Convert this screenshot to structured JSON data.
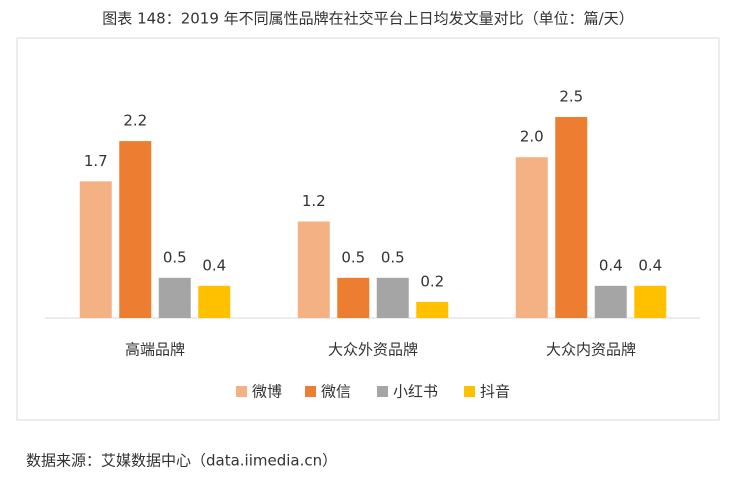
{
  "chart_data": {
    "type": "bar",
    "title": "图表 148：2019 年不同属性品牌在社交平台上日均发文量对比（单位：篇/天）",
    "categories": [
      "高端品牌",
      "大众外资品牌",
      "大众内资品牌"
    ],
    "series": [
      {
        "name": "微博",
        "color": "#F4B183",
        "values": [
          1.7,
          1.2,
          2.0
        ],
        "value_labels": [
          "1.7",
          "1.2",
          "2.0"
        ]
      },
      {
        "name": "微信",
        "color": "#ED7D31",
        "values": [
          2.2,
          0.5,
          2.5
        ]
      },
      {
        "name": "小红书",
        "color": "#A5A5A5",
        "values": [
          0.5,
          0.5,
          0.4
        ]
      },
      {
        "name": "抖音",
        "color": "#FFC000",
        "values": [
          0.4,
          0.2,
          0.4
        ]
      }
    ],
    "ylim": [
      0,
      2.5
    ],
    "source": "数据来源：艾媒数据中心（data.iimedia.cn）"
  }
}
